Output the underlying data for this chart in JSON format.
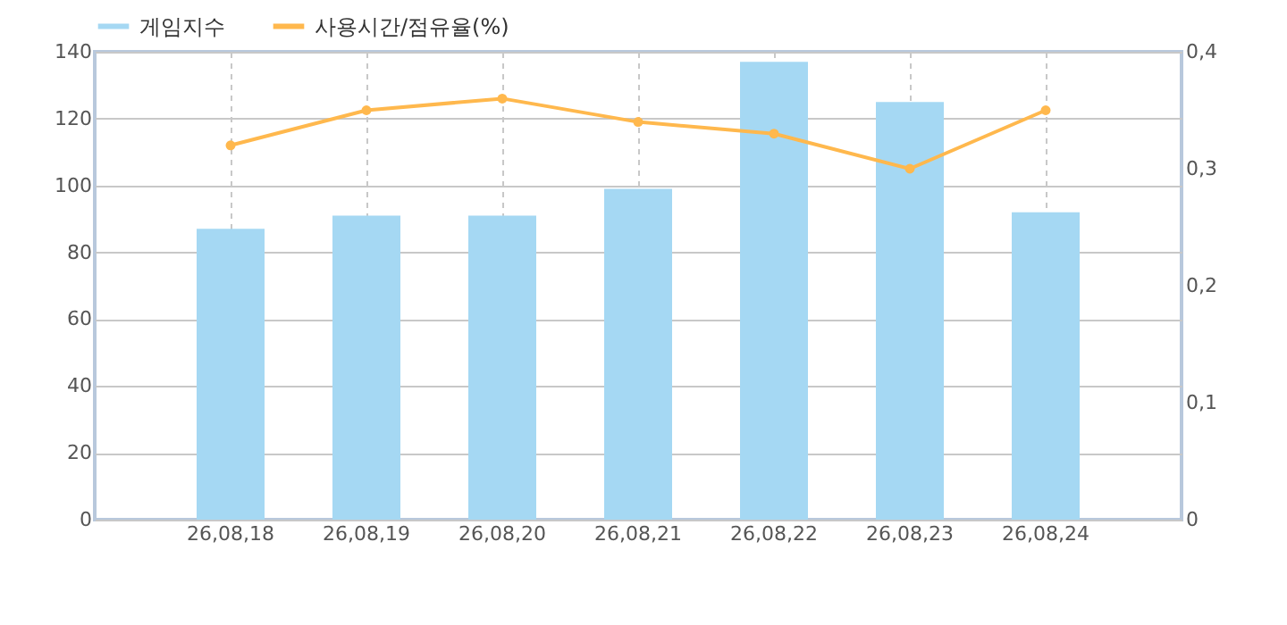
{
  "chart_data": {
    "type": "bar",
    "categories": [
      "26,08,18",
      "26,08,19",
      "26,08,20",
      "26,08,21",
      "26,08,22",
      "26,08,23",
      "26,08,24"
    ],
    "series": [
      {
        "name": "게임지수",
        "color": "#a5d8f3",
        "values": [
          87,
          91,
          91,
          99,
          137,
          125,
          92
        ]
      },
      {
        "name": "사용시간/점유율(%)",
        "type": "line",
        "axis": "y2",
        "color": "#ffb84d",
        "values": [
          0.32,
          0.35,
          0.36,
          0.34,
          0.33,
          0.3,
          0.35
        ]
      }
    ],
    "ylim": [
      0,
      140
    ],
    "yticks": [
      0,
      20,
      40,
      60,
      80,
      100,
      120,
      140
    ],
    "y2lim": [
      0,
      0.4
    ],
    "y2ticks": [
      0,
      {
        "value": 0.1,
        "label": "0,1"
      },
      {
        "value": 0.2,
        "label": "0,2"
      },
      {
        "value": 0.3,
        "label": "0,3"
      },
      {
        "value": 0.4,
        "label": "0,4"
      }
    ],
    "grid": true,
    "legend": "top left",
    "marker": "circle",
    "line_style": "solid"
  }
}
